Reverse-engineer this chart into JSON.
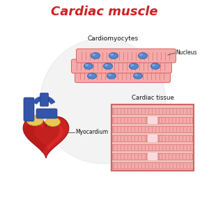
{
  "title": "Cardiac muscle",
  "title_color": "#cc2222",
  "title_fontsize": 13,
  "bg_color": "#ffffff",
  "label_cardiomyocytes": "Cardiomyocytes",
  "label_nucleus": "Nucleus",
  "label_myocardium": "Myocardium",
  "label_cardiac_tissue": "Cardiac tissue",
  "fiber_color": "#f4aaaa",
  "fiber_stripe_color": "#d96060",
  "fiber_dark_stripe": "#c05555",
  "nucleus_color": "#5588cc",
  "nucleus_dark": "#3366aa",
  "heart_red": "#cc2222",
  "heart_dark_red": "#991111",
  "heart_bright": "#ee3333",
  "heart_blue": "#3355aa",
  "heart_yellow": "#e8c855",
  "tissue_bg": "#f0c0b8",
  "tissue_stripe": "#cc6666",
  "tissue_dark": "#aa4444",
  "tissue_light": "#fadadd",
  "watermark_color": "#dddddd"
}
